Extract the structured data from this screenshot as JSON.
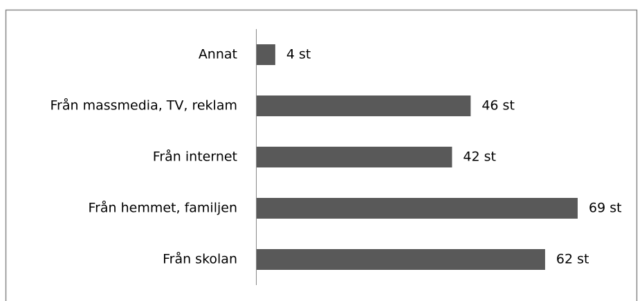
{
  "chart_data": {
    "type": "barh",
    "categories": [
      "Annat",
      "Från massmedia, TV, reklam",
      "Från internet",
      "Från hemmet, familjen",
      "Från skolan"
    ],
    "values": [
      4,
      46,
      42,
      69,
      62
    ],
    "value_labels": [
      "4 st",
      "46 st",
      "42 st",
      "69 st",
      "62 st"
    ],
    "color": "#595959"
  }
}
